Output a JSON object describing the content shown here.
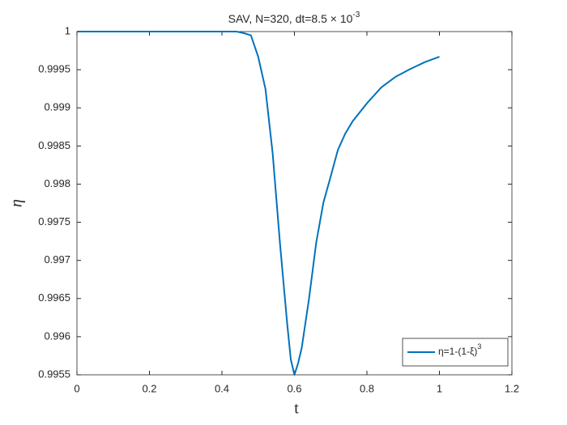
{
  "chart_data": {
    "type": "line",
    "title": {
      "text": "SAV, N=320, dt=8.5 × 10",
      "superscript": "-3"
    },
    "xlabel": "t",
    "ylabel": "η",
    "x": [
      0,
      0.1,
      0.2,
      0.3,
      0.4,
      0.44,
      0.46,
      0.48,
      0.5,
      0.52,
      0.54,
      0.56,
      0.58,
      0.59,
      0.6,
      0.61,
      0.62,
      0.64,
      0.66,
      0.68,
      0.7,
      0.72,
      0.74,
      0.76,
      0.8,
      0.84,
      0.88,
      0.92,
      0.96,
      1.0
    ],
    "series": [
      {
        "name": "η=1-(1-ξ)",
        "name_superscript": "3",
        "color": "#0072bd",
        "values": [
          1,
          1,
          1,
          1,
          1,
          1,
          0.99998,
          0.99995,
          0.99967,
          0.99925,
          0.9984,
          0.99723,
          0.99617,
          0.9957,
          0.9955,
          0.99565,
          0.99585,
          0.99649,
          0.99723,
          0.99776,
          0.9981,
          0.99845,
          0.99866,
          0.99882,
          0.99906,
          0.99927,
          0.99941,
          0.99951,
          0.9996,
          0.99967
        ]
      }
    ],
    "xlim": [
      0,
      1.2
    ],
    "xticks": [
      0,
      0.2,
      0.4,
      0.6,
      0.8,
      1,
      1.2
    ],
    "ylim": [
      0.9955,
      1
    ],
    "yticks": [
      0.9955,
      0.996,
      0.9965,
      0.997,
      0.9975,
      0.998,
      0.9985,
      0.999,
      0.9995,
      1
    ],
    "legend": "lower right",
    "grid": false
  }
}
